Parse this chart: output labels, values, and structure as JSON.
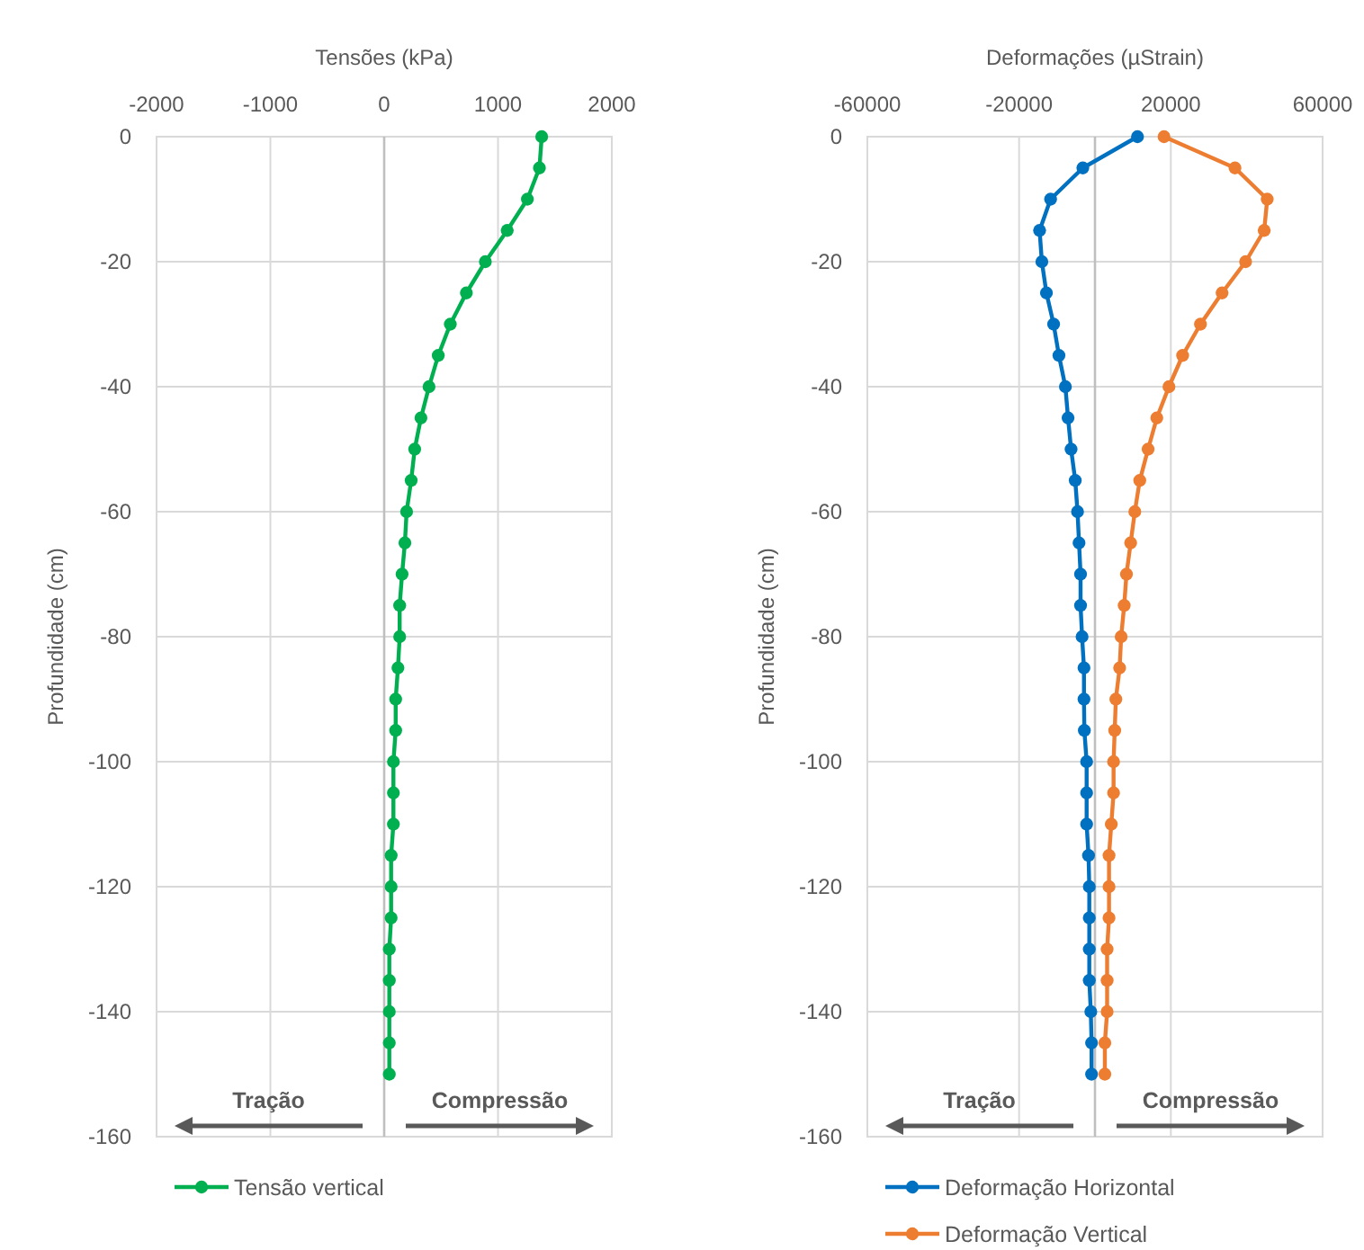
{
  "chart_data": [
    {
      "type": "line",
      "xlabel": "Tensões (kPa)",
      "ylabel": "Profundidade (cm)",
      "xlim": [
        -2000,
        2000
      ],
      "xticks": [
        -2000,
        -1000,
        0,
        1000,
        2000
      ],
      "ylim": [
        -160,
        0
      ],
      "yticks": [
        -160,
        -140,
        -120,
        -100,
        -80,
        -60,
        -40,
        -20,
        0
      ],
      "grid": true,
      "legend": "bottom",
      "marker": "circle",
      "line_style": "solid",
      "ref_lines": [
        {
          "axis": "x",
          "value": 0,
          "color": "#bfbfbf"
        }
      ],
      "annotations": [
        "Tração",
        "Compressão"
      ],
      "series": [
        {
          "name": "Tensão vertical",
          "color": "#00b050",
          "x": [
            1384,
            1364,
            1258,
            1081,
            889,
            722,
            581,
            475,
            394,
            323,
            268,
            237,
            197,
            182,
            157,
            136,
            136,
            121,
            101,
            101,
            81,
            81,
            81,
            61,
            61,
            61,
            45,
            45,
            45,
            45,
            45
          ],
          "values": [
            0,
            -5,
            -10,
            -15,
            -20,
            -25,
            -30,
            -35,
            -40,
            -45,
            -50,
            -55,
            -60,
            -65,
            -70,
            -75,
            -80,
            -85,
            -90,
            -95,
            -100,
            -105,
            -110,
            -115,
            -120,
            -125,
            -130,
            -135,
            -140,
            -145,
            -150
          ]
        }
      ]
    },
    {
      "type": "line",
      "xlabel": "Deformações (µStrain)",
      "ylabel": "Profundidade (cm)",
      "xlim": [
        -60000,
        60000
      ],
      "xticks": [
        -60000,
        -20000,
        20000,
        60000
      ],
      "ylim": [
        -160,
        0
      ],
      "yticks": [
        -160,
        -140,
        -120,
        -100,
        -80,
        -60,
        -40,
        -20,
        0
      ],
      "grid": true,
      "legend": "bottom",
      "marker": "circle",
      "line_style": "solid",
      "ref_lines": [
        {
          "axis": "x",
          "value": 0,
          "color": "#bfbfbf"
        }
      ],
      "annotations": [
        "Tração",
        "Compressão"
      ],
      "series": [
        {
          "name": "Deformação Horizontal",
          "color": "#0070c0",
          "x": [
            11200,
            -3200,
            -11700,
            -14600,
            -14000,
            -12800,
            -10900,
            -9500,
            -7800,
            -7100,
            -6300,
            -5200,
            -4600,
            -4200,
            -3800,
            -3800,
            -3400,
            -2900,
            -2900,
            -2800,
            -2200,
            -2200,
            -2200,
            -1700,
            -1500,
            -1500,
            -1500,
            -1500,
            -1100,
            -900,
            -900
          ],
          "values": [
            0,
            -5,
            -10,
            -15,
            -20,
            -25,
            -30,
            -35,
            -40,
            -45,
            -50,
            -55,
            -60,
            -65,
            -70,
            -75,
            -80,
            -85,
            -90,
            -95,
            -100,
            -105,
            -110,
            -115,
            -120,
            -125,
            -130,
            -135,
            -140,
            -145,
            -150
          ]
        },
        {
          "name": "Deformação Vertical",
          "color": "#ed7d31",
          "x": [
            18200,
            36900,
            45400,
            44600,
            39700,
            33500,
            27800,
            23100,
            19500,
            16300,
            14000,
            11800,
            10500,
            9400,
            8300,
            7700,
            6900,
            6500,
            5500,
            5200,
            4900,
            4900,
            4300,
            3700,
            3700,
            3700,
            3200,
            3200,
            3200,
            2600,
            2600
          ],
          "values": [
            0,
            -5,
            -10,
            -15,
            -20,
            -25,
            -30,
            -35,
            -40,
            -45,
            -50,
            -55,
            -60,
            -65,
            -70,
            -75,
            -80,
            -85,
            -90,
            -95,
            -100,
            -105,
            -110,
            -115,
            -120,
            -125,
            -130,
            -135,
            -140,
            -145,
            -150
          ]
        }
      ]
    }
  ]
}
